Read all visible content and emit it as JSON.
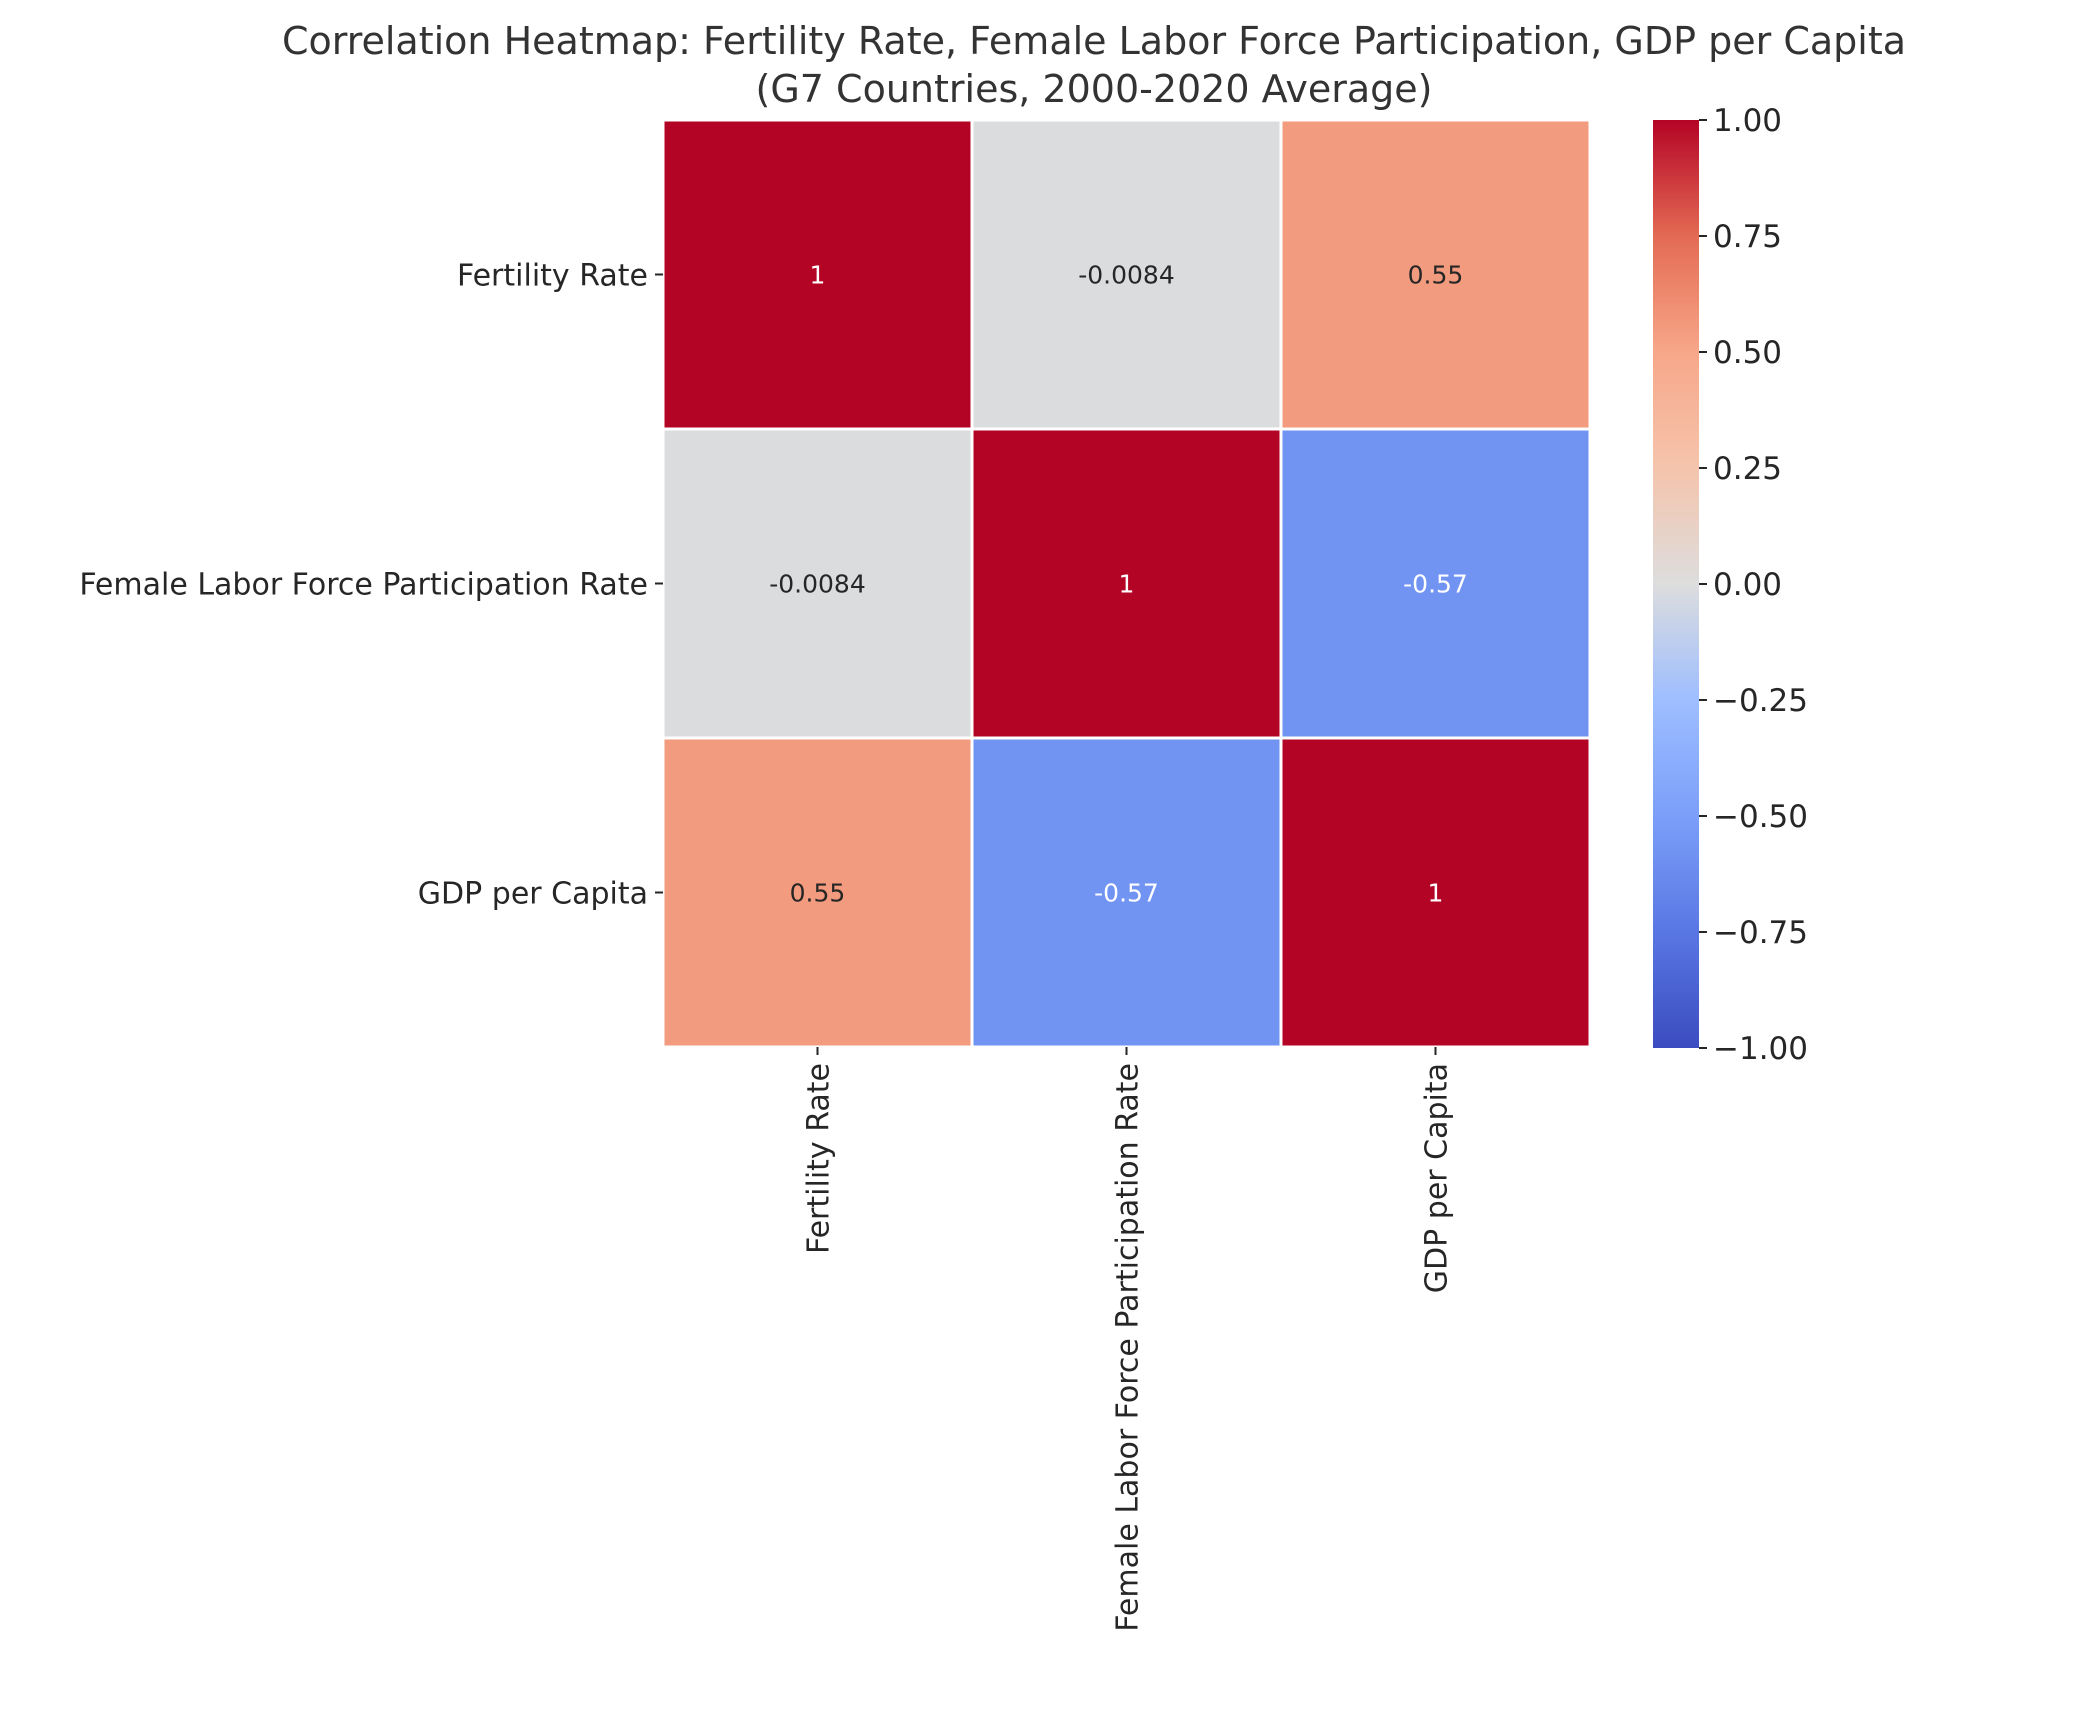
{
  "chart_data": {
    "type": "heatmap",
    "title_line1": "Correlation Heatmap: Fertility Rate, Female Labor Force Participation, GDP per Capita",
    "title_line2": "(G7 Countries, 2000-2020 Average)",
    "row_labels": [
      "Fertility Rate",
      "Female Labor Force Participation Rate",
      "GDP per Capita"
    ],
    "col_labels": [
      "Fertility Rate",
      "Female Labor Force Participation Rate",
      "GDP per Capita"
    ],
    "values": [
      [
        1,
        -0.0084,
        0.55
      ],
      [
        -0.0084,
        1,
        -0.57
      ],
      [
        0.55,
        -0.57,
        1
      ]
    ],
    "annotations": [
      [
        "1",
        "-0.0084",
        "0.55"
      ],
      [
        "-0.0084",
        "1",
        "-0.57"
      ],
      [
        "0.55",
        "-0.57",
        "1"
      ]
    ],
    "colormap": "coolwarm",
    "vmin": -1,
    "vmax": 1,
    "colorbar_ticks": [
      1.0,
      0.75,
      0.5,
      0.25,
      0.0,
      -0.25,
      -0.5,
      -0.75,
      -1.0
    ],
    "colorbar_tick_labels": [
      "1.00",
      "0.75",
      "0.50",
      "0.25",
      "0.00",
      "−0.25",
      "−0.50",
      "−0.75",
      "−1.00"
    ],
    "xlabel": "",
    "ylabel": ""
  }
}
